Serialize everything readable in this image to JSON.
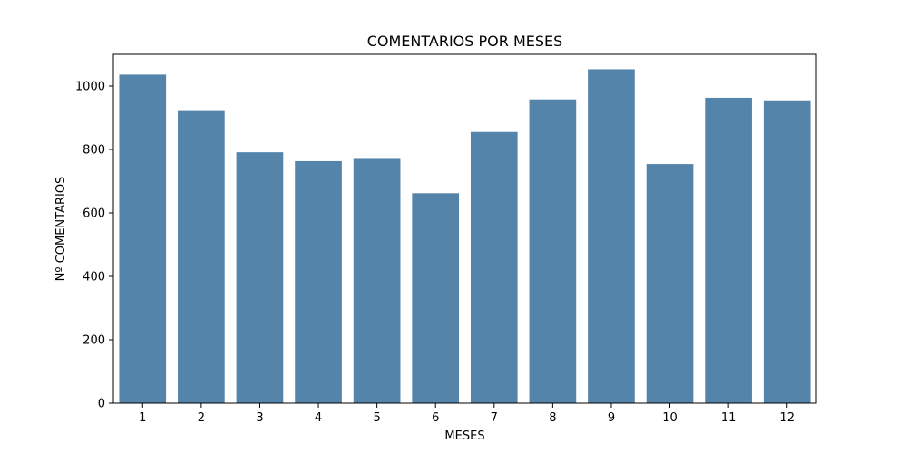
{
  "chart_data": {
    "type": "bar",
    "title": "COMENTARIOS POR MESES",
    "xlabel": "MESES",
    "ylabel": "Nº COMENTARIOS",
    "categories": [
      "1",
      "2",
      "3",
      "4",
      "5",
      "6",
      "7",
      "8",
      "9",
      "10",
      "11",
      "12"
    ],
    "values": [
      1036,
      924,
      791,
      763,
      773,
      662,
      855,
      958,
      1053,
      754,
      963,
      955
    ],
    "ylim": [
      0,
      1100
    ],
    "yticks": [
      0,
      200,
      400,
      600,
      800,
      1000
    ],
    "bar_color": "#5584ab",
    "grid": false,
    "legend": "none"
  }
}
